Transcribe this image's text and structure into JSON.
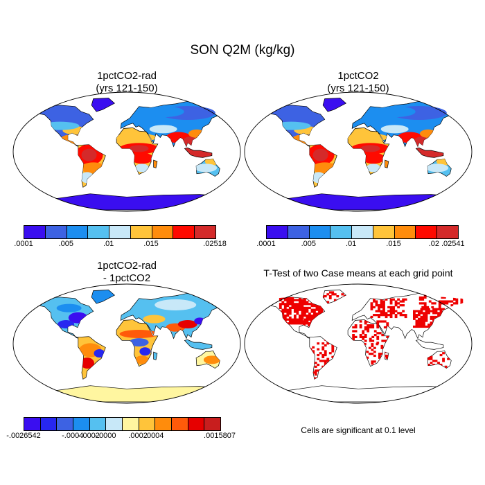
{
  "title": "SON Q2M (kg/kg)",
  "panels": [
    {
      "title_line1": "1pctCO2-rad",
      "title_line2": "(yrs 121-150)"
    },
    {
      "title_line1": "1pctCO2",
      "title_line2": "(yrs 121-150)"
    },
    {
      "title_line1": "1pctCO2-rad",
      "title_line2": "- 1pctCO2"
    },
    {
      "title_line1": "T-Test of two Case means at each grid point",
      "title_line2": ""
    }
  ],
  "colorbars": {
    "abs1": {
      "colors": [
        "#3a0ef0",
        "#3d62e3",
        "#1c8ef0",
        "#55c0f0",
        "#c8e8f8",
        "#ffc43a",
        "#ff8c0c",
        "#ff0a00",
        "#d42a2a"
      ],
      "labels": [
        ".0001",
        ".005",
        ".01",
        ".015",
        ".02518"
      ]
    },
    "abs2": {
      "colors": [
        "#3a0ef0",
        "#3d62e3",
        "#1c8ef0",
        "#55c0f0",
        "#c8e8f8",
        "#ffc43a",
        "#ff8c0c",
        "#ff0a00",
        "#d42a2a"
      ],
      "labels": [
        ".0001",
        ".005",
        ".01",
        ".015",
        ".02 .02541"
      ]
    },
    "diff": {
      "colors": [
        "#3a0ef0",
        "#2727f0",
        "#3d62e3",
        "#1c8ef0",
        "#55c0f0",
        "#c8e8f8",
        "#fff6a0",
        "#ffc43a",
        "#ff8c0c",
        "#ff5a0a",
        "#e60000",
        "#c81e1e"
      ],
      "labels": [
        "-.0026542",
        "-.0004",
        "-.0002",
        "-.0000",
        ".0002",
        ".0004",
        ".0015807"
      ]
    }
  },
  "note": "Cells are significant at 0.1 level"
}
